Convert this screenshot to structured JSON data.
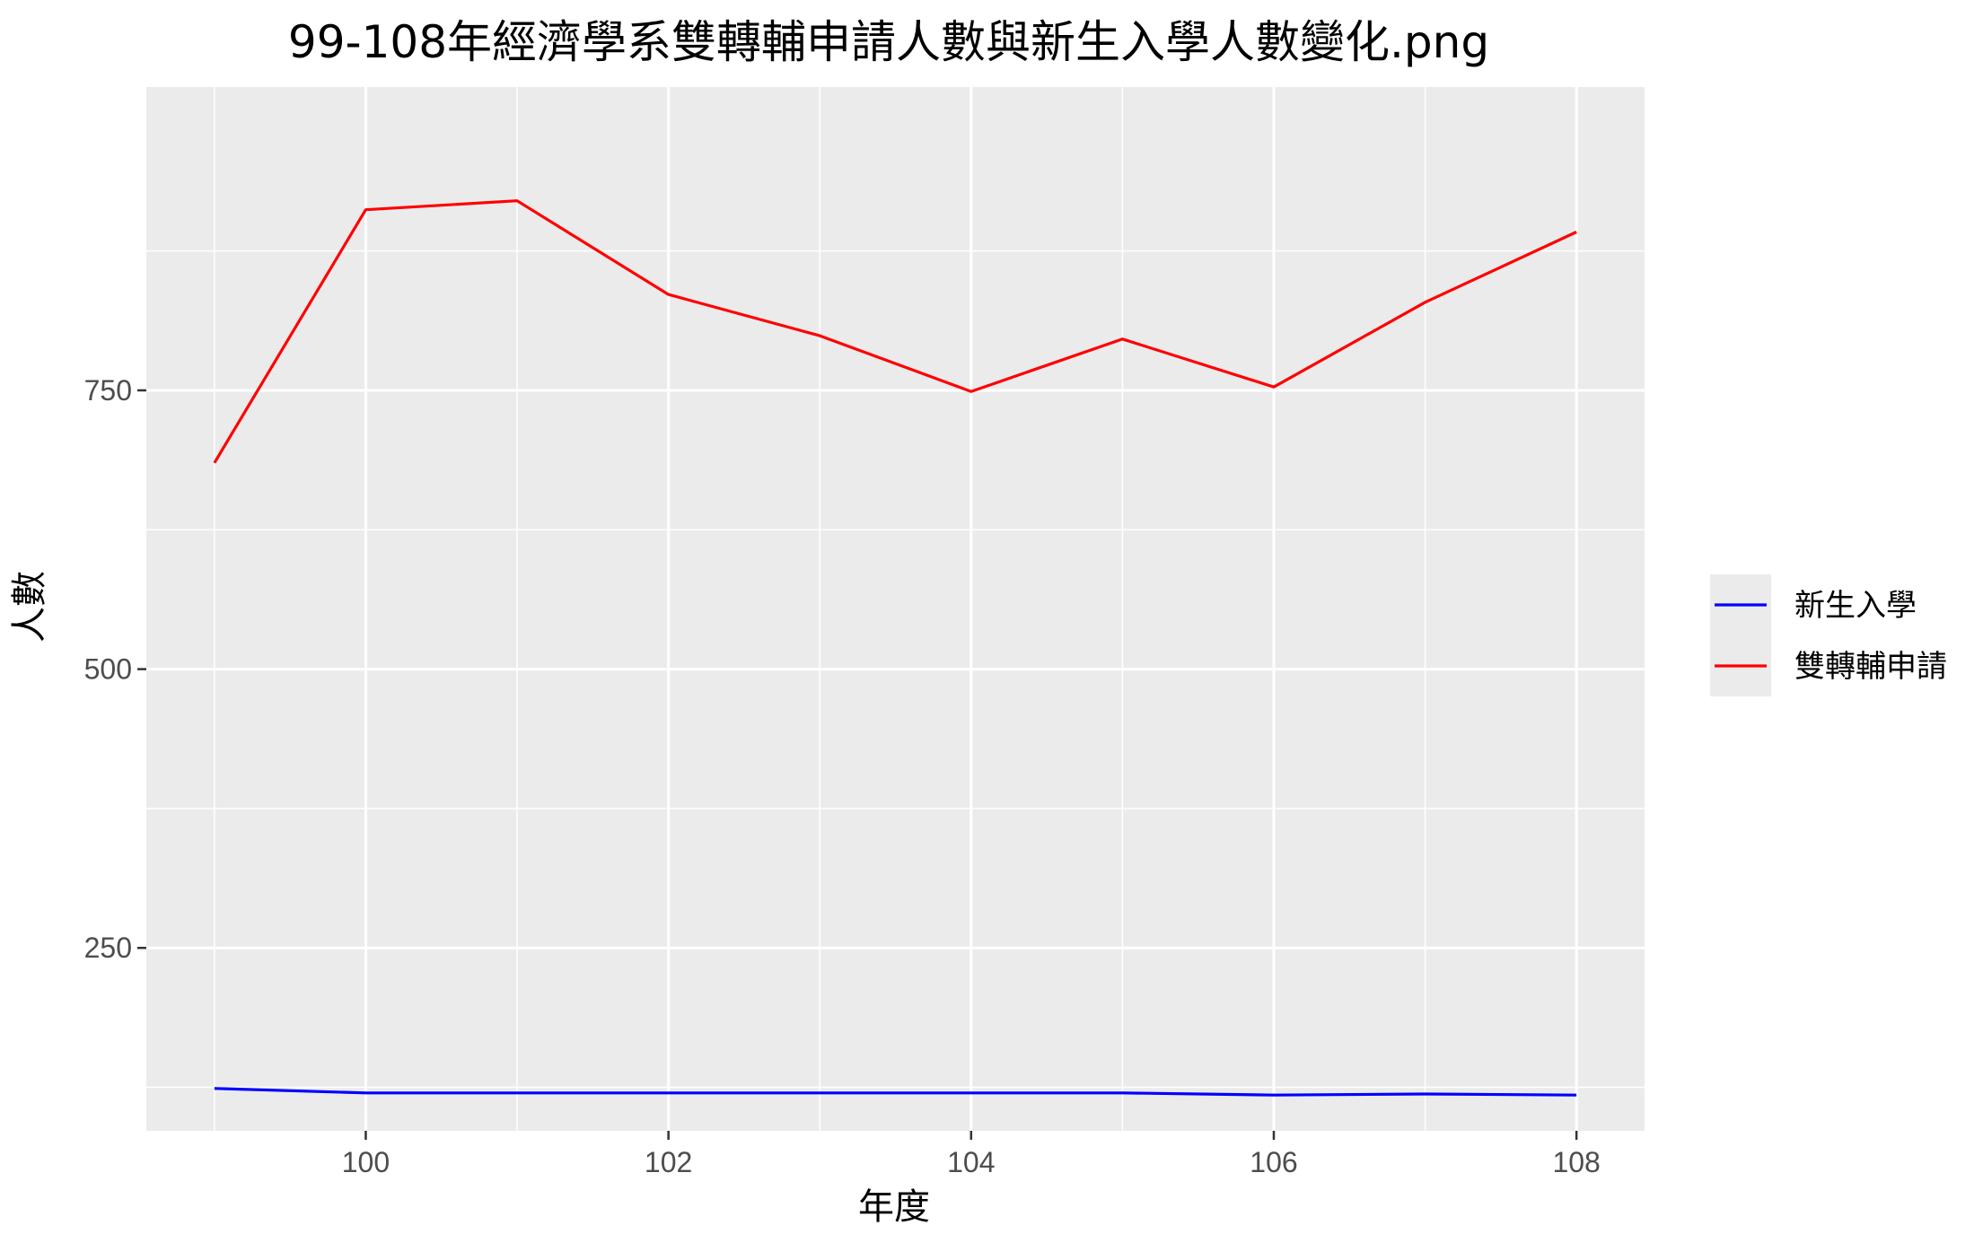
{
  "chart_data": {
    "type": "line",
    "title": "99-108年經濟學系雙轉輔申請人數與新生入學人數變化.png",
    "xlabel": "年度",
    "ylabel": "人數",
    "x": [
      99,
      100,
      101,
      102,
      103,
      104,
      105,
      106,
      107,
      108
    ],
    "x_ticks": [
      100,
      102,
      104,
      106,
      108
    ],
    "y_ticks": [
      250,
      500,
      750
    ],
    "xlim": [
      98.55,
      108.45
    ],
    "ylim": [
      86,
      1022
    ],
    "grid": true,
    "legend_position": "right",
    "series": [
      {
        "name": "新生入學",
        "color": "#0000ff",
        "values": [
          124,
          120,
          120,
          120,
          120,
          120,
          120,
          118,
          119,
          118
        ]
      },
      {
        "name": "雙轉輔申請",
        "color": "#ff0000",
        "values": [
          685,
          912,
          920,
          836,
          799,
          749,
          796,
          753,
          829,
          892
        ]
      }
    ]
  }
}
